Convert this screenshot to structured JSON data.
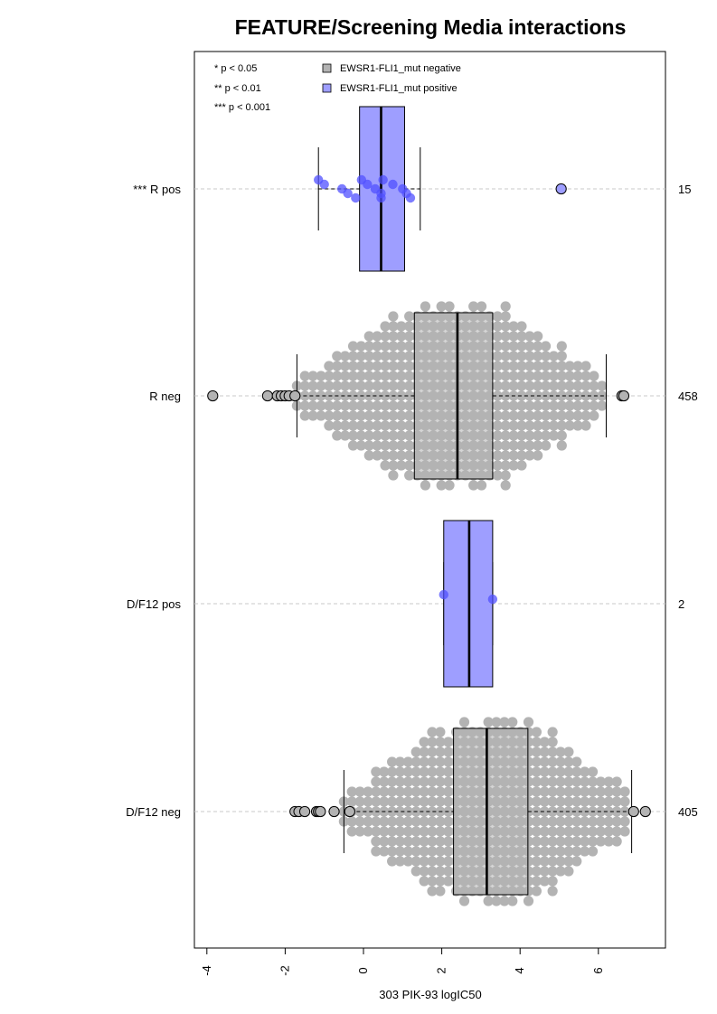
{
  "chart_data": {
    "type": "boxplot-beeswarm",
    "title": "FEATURE/Screening Media interactions",
    "xlabel": "303 PIK-93 logIC50",
    "ylabel": "",
    "xlim": [
      -4.3,
      7.7
    ],
    "xticks": [
      -4,
      -2,
      0,
      2,
      4,
      6
    ],
    "xtick_labels": [
      "-4",
      "-2",
      "0",
      "2",
      "4",
      "6"
    ],
    "grid": "dashed horizontal lines at each group",
    "legend": {
      "placement": "top-left",
      "significance": [
        "* p < 0.05",
        "** p < 0.01",
        "*** p < 0.001"
      ],
      "entries": [
        {
          "label": "EWSR1-FLI1_mut negative",
          "color": "#b3b3b3"
        },
        {
          "label": "EWSR1-FLI1_mut positive",
          "color": "#9e9eff"
        }
      ]
    },
    "groups": [
      {
        "label": "*** R pos",
        "n": "15",
        "mutation": "positive",
        "box": {
          "q1": -0.1,
          "median": 0.45,
          "q3": 1.05,
          "whisker_low": -1.15,
          "whisker_high": 1.45
        },
        "points": [
          -1.15,
          -1.0,
          -0.55,
          -0.4,
          -0.2,
          -0.05,
          0.1,
          0.3,
          0.45,
          0.45,
          0.5,
          0.75,
          1.0,
          1.1,
          1.2
        ],
        "outliers": [
          5.05
        ]
      },
      {
        "label": "R neg",
        "n": "458",
        "mutation": "negative",
        "box": {
          "q1": 1.3,
          "median": 2.4,
          "q3": 3.3,
          "whisker_low": -1.7,
          "whisker_high": 6.2
        },
        "points": [],
        "outliers": [
          -3.85,
          -2.45,
          -2.2,
          -2.1,
          -2.0,
          -1.9,
          -1.75,
          6.6,
          6.65
        ]
      },
      {
        "label": "D/F12 pos",
        "n": "2",
        "mutation": "positive",
        "box": {
          "q1": 2.05,
          "median": 2.7,
          "q3": 3.3,
          "whisker_low": 2.05,
          "whisker_high": 3.3
        },
        "points": [
          2.05,
          3.3
        ],
        "outliers": []
      },
      {
        "label": "D/F12 neg",
        "n": "405",
        "mutation": "negative",
        "box": {
          "q1": 2.3,
          "median": 3.15,
          "q3": 4.2,
          "whisker_low": -0.5,
          "whisker_high": 6.85
        },
        "points": [],
        "outliers": [
          -1.75,
          -1.65,
          -1.5,
          -1.2,
          -1.15,
          -1.1,
          -0.75,
          -0.35,
          6.9,
          7.2
        ]
      }
    ]
  }
}
